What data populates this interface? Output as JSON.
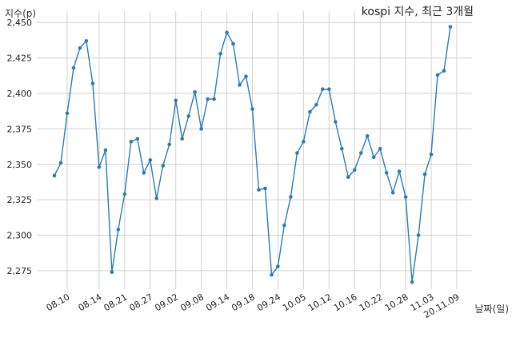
{
  "chart_data": {
    "type": "line",
    "title": "kospi 지수, 최근 3개월",
    "ylabel": "지수(p)",
    "xlabel": "날짜(일)",
    "ylim": [
      2262,
      2458
    ],
    "yticks": [
      2275,
      2300,
      2325,
      2350,
      2375,
      2400,
      2425,
      2450
    ],
    "ytick_labels": [
      "2,275",
      "2,300",
      "2,325",
      "2,350",
      "2,375",
      "2,400",
      "2,425",
      "2,450"
    ],
    "xtick_labels": [
      "08.10",
      "08.14",
      "08.21",
      "08.27",
      "09.02",
      "09.08",
      "09.14",
      "09.18",
      "09.24",
      "10.05",
      "10.12",
      "10.16",
      "10.22",
      "10.28",
      "11.03",
      "20.11.09"
    ],
    "xtick_index": [
      2,
      7,
      11,
      15,
      19,
      23,
      27,
      31,
      35,
      39,
      43,
      47,
      51,
      55,
      59,
      63
    ],
    "grid": true,
    "series": [
      {
        "color": "#2b7bb3",
        "values": [
          2342,
          2351,
          2386,
          2418,
          2432,
          2437,
          2407,
          2348,
          2360,
          2274,
          2304,
          2329,
          2366,
          2368,
          2344,
          2353,
          2326,
          2349,
          2364,
          2395,
          2368,
          2384,
          2401,
          2375,
          2396,
          2396,
          2428,
          2443,
          2435,
          2406,
          2412,
          2389,
          2332,
          2333,
          2272,
          2278,
          2307,
          2327,
          2358,
          2366,
          2387,
          2392,
          2403,
          2403,
          2380,
          2361,
          2341,
          2346,
          2358,
          2370,
          2355,
          2361,
          2344,
          2330,
          2345,
          2327,
          2267,
          2300,
          2343,
          2357,
          2413,
          2416,
          2447
        ]
      }
    ]
  }
}
